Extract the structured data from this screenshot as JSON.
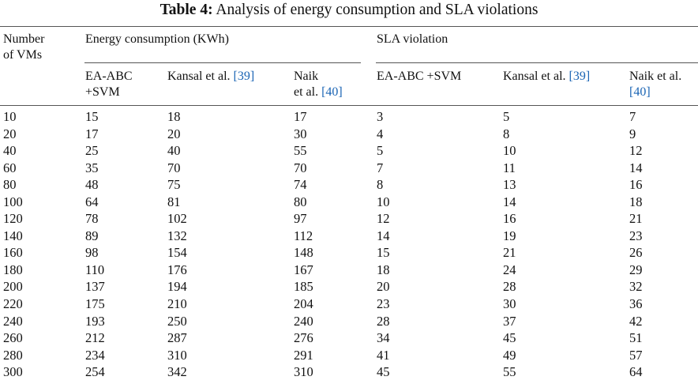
{
  "caption": {
    "label": "Table 4:",
    "text": "Analysis of energy consumption and SLA violations"
  },
  "headers": {
    "vms_line1": "Number",
    "vms_line2": "of VMs",
    "group_energy": "Energy consumption (KWh)",
    "group_sla": "SLA violation",
    "ea_line1": "EA-ABC",
    "ea_line2": "+SVM",
    "kansal_text": "Kansal et al.",
    "kansal_ref": "[39]",
    "naik_line1": "Naik",
    "naik_line2": "et al.",
    "naik_ref": "[40]",
    "sla_ea": "EA-ABC +SVM",
    "sla_kansal_text": "Kansal et al.",
    "sla_kansal_ref": "[39]",
    "sla_naik_line1": "Naik et al.",
    "sla_naik_ref": "[40]"
  },
  "rows": [
    [
      "10",
      "15",
      "18",
      "17",
      "3",
      "5",
      "7"
    ],
    [
      "20",
      "17",
      "20",
      "30",
      "4",
      "8",
      "9"
    ],
    [
      "40",
      "25",
      "40",
      "55",
      "5",
      "10",
      "12"
    ],
    [
      "60",
      "35",
      "70",
      "70",
      "7",
      "11",
      "14"
    ],
    [
      "80",
      "48",
      "75",
      "74",
      "8",
      "13",
      "16"
    ],
    [
      "100",
      "64",
      "81",
      "80",
      "10",
      "14",
      "18"
    ],
    [
      "120",
      "78",
      "102",
      "97",
      "12",
      "16",
      "21"
    ],
    [
      "140",
      "89",
      "132",
      "112",
      "14",
      "19",
      "23"
    ],
    [
      "160",
      "98",
      "154",
      "148",
      "15",
      "21",
      "26"
    ],
    [
      "180",
      "110",
      "176",
      "167",
      "18",
      "24",
      "29"
    ],
    [
      "200",
      "137",
      "194",
      "185",
      "20",
      "28",
      "32"
    ],
    [
      "220",
      "175",
      "210",
      "204",
      "23",
      "30",
      "36"
    ],
    [
      "240",
      "193",
      "250",
      "240",
      "28",
      "37",
      "42"
    ],
    [
      "260",
      "212",
      "287",
      "276",
      "34",
      "45",
      "51"
    ],
    [
      "280",
      "234",
      "310",
      "291",
      "41",
      "49",
      "57"
    ],
    [
      "300",
      "254",
      "342",
      "310",
      "45",
      "55",
      "64"
    ]
  ]
}
